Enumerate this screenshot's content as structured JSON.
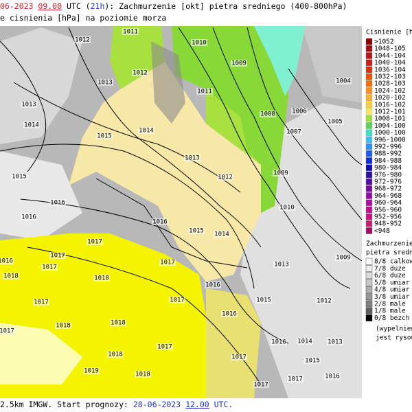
{
  "header": {
    "line1": [
      "06-2023",
      "09.00",
      "UTC (",
      "21h",
      "): Zachmurzenie [okt] pietra sredniego (400-800hPa)"
    ],
    "line2": "e cisnienia [hPa] na poziomie morza"
  },
  "footer": [
    "2.5km IMGW. Start prognozy:",
    "28-06-2023",
    "12.00",
    "UTC."
  ],
  "pressure_legend": {
    "title": "Cisnienie [hP",
    "items": [
      {
        "label": ">1052",
        "color": "#8b0000"
      },
      {
        "label": "1048-105",
        "color": "#a01010"
      },
      {
        "label": "1044-104",
        "color": "#b41818"
      },
      {
        "label": "1040-104",
        "color": "#c82020"
      },
      {
        "label": "1036-104",
        "color": "#dc3010"
      },
      {
        "label": "1032-103",
        "color": "#e85010"
      },
      {
        "label": "1028-103",
        "color": "#f07010"
      },
      {
        "label": "1024-102",
        "color": "#f89020"
      },
      {
        "label": "1020-102",
        "color": "#f8b030"
      },
      {
        "label": "1016-102",
        "color": "#f8d040"
      },
      {
        "label": "1012-101",
        "color": "#f8e860"
      },
      {
        "label": "1008-101",
        "color": "#a0e040"
      },
      {
        "label": "1004-100",
        "color": "#60d060"
      },
      {
        "label": "1000-100",
        "color": "#40e0c0"
      },
      {
        "label": "996-1000",
        "color": "#40c0f0"
      },
      {
        "label": "992-996",
        "color": "#3090f0"
      },
      {
        "label": "988-992",
        "color": "#2060e0"
      },
      {
        "label": "984-988",
        "color": "#1030d0"
      },
      {
        "label": "980-984",
        "color": "#1010b0"
      },
      {
        "label": "976-980",
        "color": "#3010a0"
      },
      {
        "label": "972-976",
        "color": "#5010a0"
      },
      {
        "label": "968-972",
        "color": "#7010a0"
      },
      {
        "label": "964-968",
        "color": "#9010a0"
      },
      {
        "label": "960-964",
        "color": "#a81098"
      },
      {
        "label": "956-960",
        "color": "#c01090"
      },
      {
        "label": "952-956",
        "color": "#d01080"
      },
      {
        "label": "948-952",
        "color": "#c02070"
      },
      {
        "label": "<948",
        "color": "#a01060"
      }
    ]
  },
  "cloud_legend": {
    "title": [
      "Zachmurzenie",
      "pietra sredni"
    ],
    "items": [
      {
        "label": "8/8 calkow",
        "color": "#ffffff"
      },
      {
        "label": "7/8 duze",
        "color": "#eeeeee"
      },
      {
        "label": "6/8 duze",
        "color": "#dddddd"
      },
      {
        "label": "5/8 umiar",
        "color": "#c8c8c8"
      },
      {
        "label": "4/8 umiar",
        "color": "#b0b0b0"
      },
      {
        "label": "3/8 umiar",
        "color": "#989898"
      },
      {
        "label": "2/8 male",
        "color": "#808080"
      },
      {
        "label": "1/8 male",
        "color": "#606060"
      },
      {
        "label": "0/8 bezch",
        "color": "#000000"
      }
    ],
    "note": [
      "(wypelnien",
      "jest rysowe"
    ]
  },
  "isobar_labels": [
    "1012",
    "1011",
    "1010",
    "1009",
    "1011",
    "1012",
    "1013",
    "1013",
    "1014",
    "1015",
    "1014",
    "1013",
    "1012",
    "1008",
    "1006",
    "1007",
    "1005",
    "1004",
    "1009",
    "1010",
    "1015",
    "1016",
    "1016",
    "1016",
    "1015",
    "1014",
    "1017",
    "1017",
    "1017",
    "1016",
    "1018",
    "1017",
    "1013",
    "1009",
    "1018",
    "1016",
    "1015",
    "1012",
    "1017",
    "1017",
    "1016",
    "1018",
    "1017",
    "1018",
    "1017",
    "1016",
    "1014",
    "1013",
    "1015",
    "1018",
    "1019",
    "1018",
    "1017",
    "1017",
    "1017",
    "1016"
  ]
}
